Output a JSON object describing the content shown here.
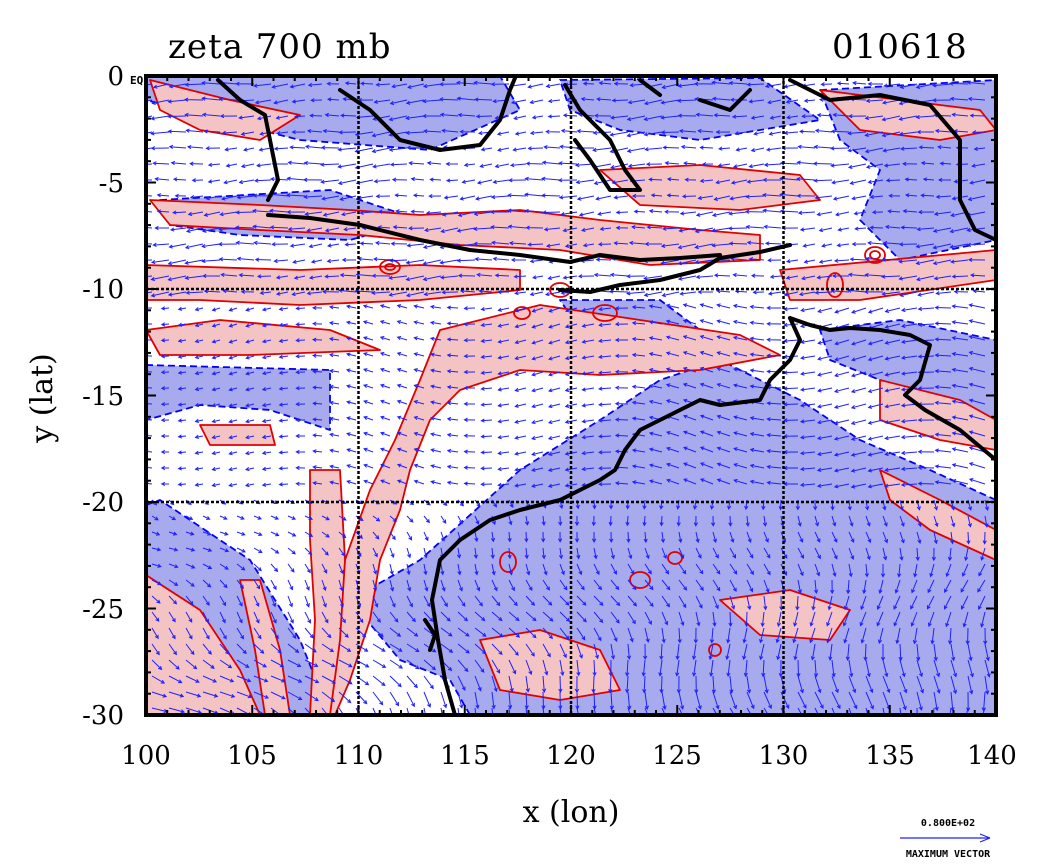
{
  "header": {
    "title": "zeta 700 mb",
    "date_code": "010618"
  },
  "axes": {
    "xlabel": "x (lon)",
    "ylabel": "y (lat)",
    "xlim": [
      100,
      140
    ],
    "ylim": [
      -30,
      0
    ],
    "x_ticks": [
      "100",
      "105",
      "110",
      "115",
      "120",
      "125",
      "130",
      "135",
      "140"
    ],
    "y_ticks": [
      "0",
      "-5",
      "-10",
      "-15",
      "-20",
      "-25",
      "-30"
    ],
    "x_tick_values": [
      100,
      105,
      110,
      115,
      120,
      125,
      130,
      135,
      140
    ],
    "y_tick_values": [
      0,
      -5,
      -10,
      -15,
      -20,
      -25,
      -30
    ],
    "grid_lon": [
      110,
      120,
      130
    ],
    "grid_lat": [
      -10,
      -20
    ],
    "equator_label": "EQ"
  },
  "legend": {
    "vector_scale_label": "0.800E+02",
    "vector_caption": "MAXIMUM VECTOR"
  },
  "colors": {
    "positive_fill": "#f4c4c4",
    "positive_contour": "#e00000",
    "negative_fill": "#a8aaee",
    "negative_contour": "#0000ff",
    "wind_vectors": "#2020ff",
    "coastline": "#000000",
    "grid": "#000000"
  },
  "layers": [
    "positive vorticity (red fill, solid contours)",
    "negative vorticity (blue fill, dashed contours)",
    "wind vectors",
    "coastlines",
    "lat/lon grid"
  ]
}
